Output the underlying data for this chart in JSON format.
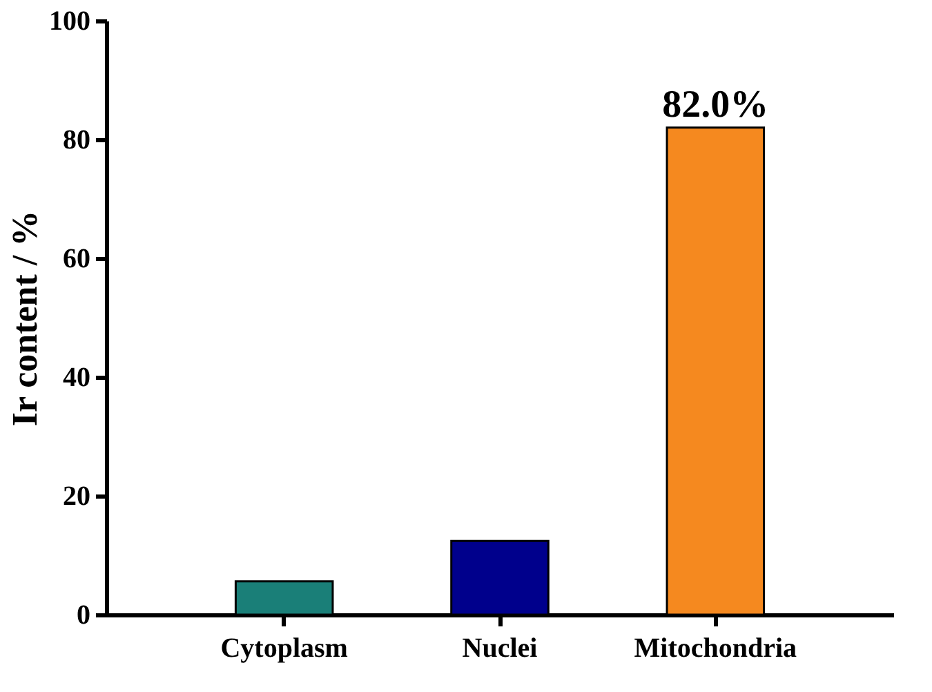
{
  "chart_data": {
    "type": "bar",
    "ylabel": "Ir content / %",
    "categories": [
      "Cytoplasm",
      "Nuclei",
      "Mitochondria"
    ],
    "values": [
      5.6,
      12.4,
      82.0
    ],
    "colors": [
      "#1a7f78",
      "#00008c",
      "#f5891f"
    ],
    "value_labels": [
      null,
      null,
      "82.0%"
    ],
    "ylim": [
      0,
      100
    ],
    "yticks": [
      0,
      20,
      40,
      60,
      80,
      100
    ],
    "grid": false
  }
}
